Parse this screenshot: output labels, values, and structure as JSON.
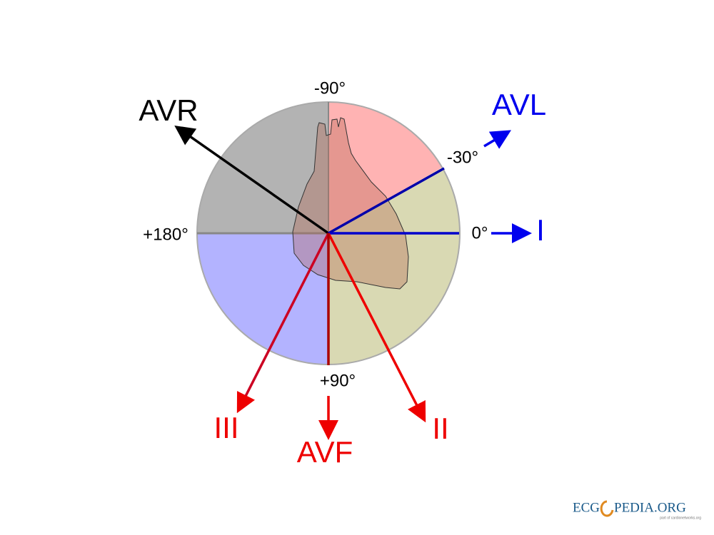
{
  "angles": {
    "minus90": "-90°",
    "minus30": "-30°",
    "zero": "0°",
    "plus180": "+180°",
    "plus90": "+90°"
  },
  "leads": {
    "avr": "AVR",
    "avl": "AVL",
    "i": "I",
    "ii": "II",
    "iii": "III",
    "avf": "AVF"
  },
  "logo": {
    "left": "ECG",
    "right": "PEDIA.ORG",
    "tagline": "part of cardionetworks.org"
  }
}
